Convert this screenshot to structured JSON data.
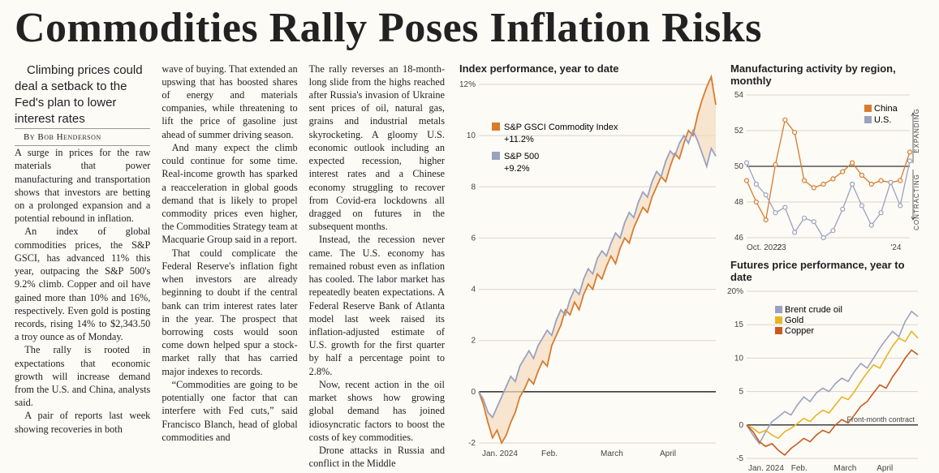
{
  "headline": "Commodities Rally Poses Inflation Risks",
  "deck": "Climbing prices could deal a setback to the Fed's plan to lower interest rates",
  "byline": "By Bob Henderson",
  "body": {
    "col1": [
      "A surge in prices for the raw materials that power manufacturing and transportation shows that investors are betting on a prolonged expansion and a potential rebound in inflation.",
      "An index of global commodities prices, the S&P GSCI, has advanced 11% this year, outpacing the S&P 500's 9.2% climb. Copper and oil have gained more than 10% and 16%, respectively. Even gold is posting records, rising 14% to $2,343.50 a troy ounce as of Monday.",
      "The rally is rooted in expectations that economic growth will increase demand from the U.S. and China, analysts said.",
      "A pair of reports last week showing recoveries in both"
    ],
    "col2": [
      "wave of buying. That extended an upswing that has boosted shares of energy and materials companies, while threatening to lift the price of gasoline just ahead of summer driving season.",
      "And many expect the climb could continue for some time. Real-income growth has sparked a reacceleration in global goods demand that is likely to propel commodity prices even higher, the Commodities Strategy team at Macquarie Group said in a report.",
      "That could complicate the Federal Reserve's inflation fight when investors are already beginning to doubt if the central bank can trim interest rates later in the year. The prospect that borrowing costs would soon come down helped spur a stock-market rally that has carried major indexes to records.",
      "“Commodities are going to be potentially one factor that can interfere with Fed cuts,” said Francisco Blanch, head of global commodities and"
    ],
    "col3": [
      "The rally reverses an 18-month-long slide from the highs reached after Russia's invasion of Ukraine sent prices of oil, natural gas, grains and industrial metals skyrocketing. A gloomy U.S. economic outlook including an expected recession, higher interest rates and a Chinese economy struggling to recover from Covid-era lockdowns all dragged on futures in the subsequent months.",
      "Instead, the recession never came. The U.S. economy has remained robust even as inflation has cooled. The labor market has repeatedly beaten expectations. A Federal Reserve Bank of Atlanta model last week raised its inflation-adjusted estimate of U.S. growth for the first quarter by half a percentage point to 2.8%.",
      "Now, recent action in the oil market shows how growing global demand has joined idiosyncratic factors to boost the costs of key commodities.",
      "Drone attacks in Russia and conflict in the Middle"
    ]
  },
  "chart_index": {
    "title": "Index performance, year to date",
    "y_ticks": [
      -2,
      0,
      2,
      4,
      6,
      8,
      10,
      12
    ],
    "y_suffix_on_top": "%",
    "x_ticks": [
      "Jan. 2024",
      "Feb.",
      "March",
      "April"
    ],
    "series": [
      {
        "name": "S&P GSCI Commodity Index",
        "final_label": "+11.2%",
        "color": "#d97b2e",
        "values": [
          0,
          -0.5,
          -1.2,
          -1.8,
          -1.5,
          -2.0,
          -1.7,
          -1.2,
          -0.8,
          -0.2,
          0.1,
          0.5,
          0.3,
          0.8,
          1.2,
          1.0,
          1.8,
          2.2,
          2.6,
          3.2,
          3.0,
          3.5,
          3.2,
          3.8,
          4.2,
          4.0,
          4.6,
          4.4,
          4.9,
          5.3,
          5.0,
          5.6,
          6.0,
          5.8,
          6.4,
          6.8,
          7.2,
          7.0,
          7.6,
          8.0,
          8.4,
          8.2,
          8.8,
          9.3,
          9.1,
          9.7,
          10.2,
          10.0,
          10.8,
          11.4,
          11.9,
          12.3,
          11.2
        ]
      },
      {
        "name": "S&P 500",
        "final_label": "+9.2%",
        "color": "#9aa2c0",
        "values": [
          0,
          -0.3,
          -0.8,
          -1.0,
          -0.6,
          -0.2,
          0.2,
          0.6,
          0.4,
          1.0,
          1.3,
          1.6,
          1.3,
          1.8,
          2.1,
          2.4,
          2.2,
          2.8,
          3.2,
          3.0,
          3.6,
          4.0,
          3.8,
          4.4,
          4.8,
          4.6,
          5.2,
          5.5,
          5.3,
          5.8,
          6.2,
          6.0,
          6.6,
          7.0,
          6.8,
          7.4,
          7.8,
          7.6,
          8.2,
          8.6,
          8.4,
          9.0,
          9.4,
          9.2,
          9.7,
          10.0,
          9.7,
          10.2,
          9.8,
          9.3,
          8.8,
          9.5,
          9.2
        ]
      }
    ],
    "fill_color": "#f4dcc0",
    "grid_color": "#d9d5cb",
    "bg": "#fdfbf6"
  },
  "chart_pmi": {
    "title": "Manufacturing activity by region, monthly",
    "y_ticks": [
      46,
      48,
      50,
      52,
      54
    ],
    "x_ticks": [
      "Oct. 2022",
      "'23",
      "'24"
    ],
    "x_tick_positions": [
      0,
      3,
      15
    ],
    "right_labels": {
      "upper": "EXPANDING",
      "lower": "CONTRACTING"
    },
    "series": [
      {
        "name": "China",
        "color": "#d97b2e",
        "marker": "o",
        "values": [
          49.2,
          48.0,
          47.0,
          50.1,
          52.6,
          51.9,
          49.2,
          48.8,
          49.0,
          49.3,
          49.7,
          50.2,
          49.5,
          49.0,
          49.2,
          49.1,
          49.2,
          50.8
        ]
      },
      {
        "name": "U.S.",
        "color": "#9aa2c0",
        "marker": "o",
        "values": [
          50.2,
          49.0,
          48.4,
          47.4,
          47.7,
          46.3,
          47.1,
          46.9,
          46.0,
          46.4,
          47.6,
          49.0,
          47.8,
          46.7,
          47.4,
          49.1,
          47.8,
          50.3
        ]
      }
    ],
    "fifty_line_color": "#000"
  },
  "chart_futures": {
    "title": "Futures price performance, year to date",
    "y_ticks": [
      -5,
      0,
      5,
      10,
      15,
      20
    ],
    "y_suffix_on_top": "%",
    "x_ticks": [
      "Jan. 2024",
      "Feb.",
      "March",
      "April"
    ],
    "note": "Front-month contract",
    "series": [
      {
        "name": "Brent crude oil",
        "color": "#9aa2c0",
        "values": [
          0,
          -1.5,
          -2.8,
          -1.0,
          0.5,
          1.2,
          2.0,
          1.5,
          3.0,
          4.2,
          3.5,
          4.8,
          5.5,
          5.0,
          6.2,
          7.0,
          6.5,
          8.0,
          9.2,
          8.5,
          10.0,
          11.5,
          12.8,
          14.0,
          13.2,
          15.5,
          17.0,
          16.2
        ]
      },
      {
        "name": "Gold",
        "color": "#e8b423",
        "values": [
          0,
          -0.5,
          -1.2,
          -0.8,
          -1.5,
          -2.0,
          -1.0,
          -0.5,
          0.2,
          1.0,
          0.5,
          1.5,
          2.2,
          1.8,
          3.0,
          4.2,
          3.8,
          5.0,
          6.5,
          7.8,
          9.0,
          8.5,
          10.2,
          11.8,
          13.0,
          12.5,
          14.0,
          13.0
        ]
      },
      {
        "name": "Copper",
        "color": "#c95a1f",
        "values": [
          0,
          -1.0,
          -2.5,
          -3.2,
          -2.8,
          -3.8,
          -4.5,
          -3.5,
          -2.8,
          -2.0,
          -2.5,
          -1.5,
          -0.8,
          -1.2,
          0.0,
          0.8,
          0.3,
          1.5,
          2.8,
          3.5,
          4.8,
          6.0,
          5.5,
          7.2,
          8.5,
          10.0,
          11.2,
          10.5
        ]
      }
    ]
  }
}
